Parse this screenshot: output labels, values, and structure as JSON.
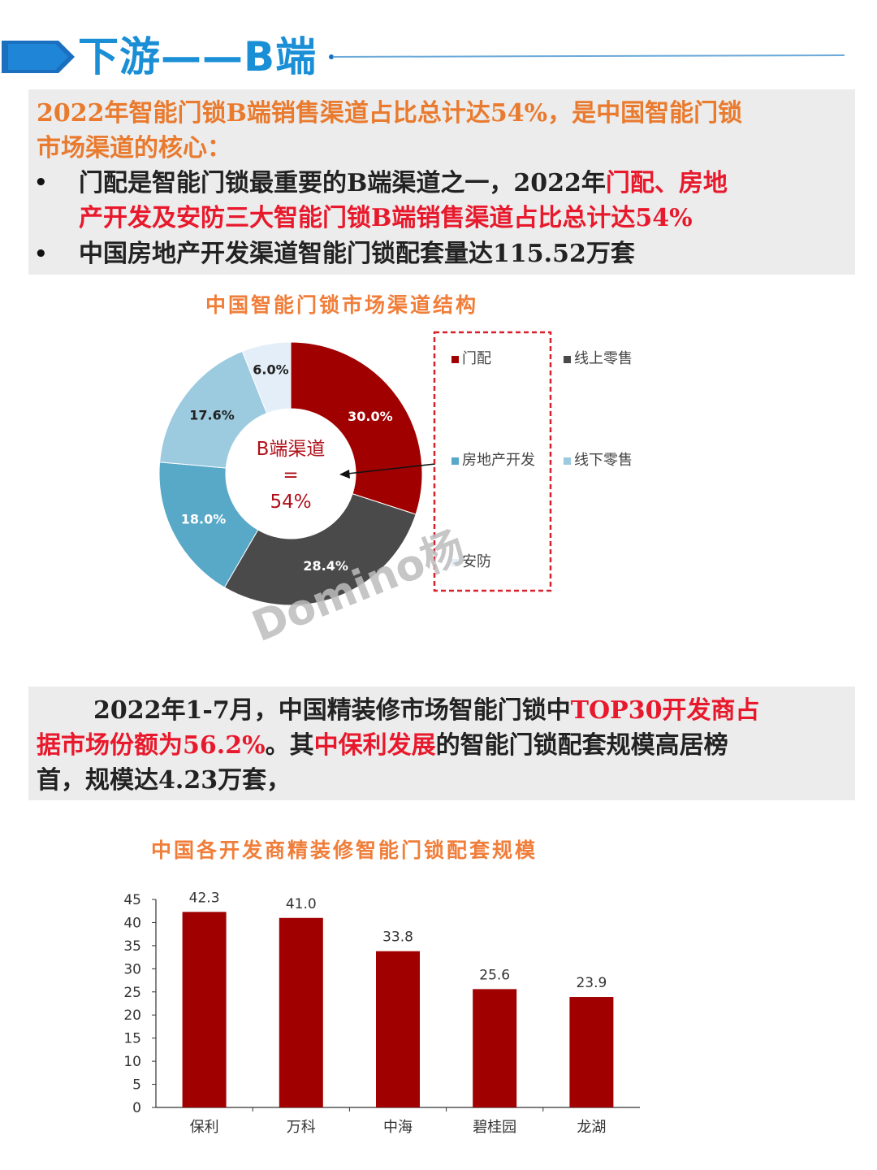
{
  "header": {
    "title": "下游——B端"
  },
  "box1": {
    "heading_line1": "2022年智能门锁B端销售渠道占比总计达54%，是中国智能门锁",
    "heading_line2": "市场渠道的核心：",
    "bullet1_line1_black": "门配是智能门锁最重要的B端渠道之一，2022年",
    "bullet1_line1_red": "门配、房地",
    "bullet1_line2_red": "产开发及安防三大智能门锁B端销售渠道占比总计达54%",
    "bullet2": "中国房地产开发渠道智能门锁配套量达115.52万套",
    "bullet_char": "•"
  },
  "donut": {
    "center_line1": "B端渠道",
    "center_line2": "=",
    "center_line3": "54%",
    "watermark": "Domino杨"
  },
  "box2": {
    "line1_black": "2022年1-7月，中国精装修市场智能门锁中",
    "line1_red": "TOP30开发商占",
    "line2_red_a": "据市场份额为56.2%",
    "line2_black_a": "。其",
    "line2_red_b": "中保利发展",
    "line2_black_b": "的智能门锁配套规模高居榜",
    "line3": "首，规模达4.23万套，"
  },
  "colors": {
    "accent_blue": "#1a8fd6",
    "orange": "#f07e3a",
    "red": "#e8192c",
    "dark_red": "#a00000"
  },
  "chart_data": [
    {
      "type": "pie",
      "variant": "donut",
      "title": "中国智能门锁市场渠道结构",
      "series": [
        {
          "name": "门配",
          "value": 30.0,
          "label": "30.0%",
          "color": "#a00000"
        },
        {
          "name": "线上零售",
          "value": 28.4,
          "label": "28.4%",
          "color": "#4a4a4a"
        },
        {
          "name": "房地产开发",
          "value": 18.0,
          "label": "18.0%",
          "color": "#58a8c8"
        },
        {
          "name": "线下零售",
          "value": 17.6,
          "label": "17.6%",
          "color": "#9ccbe0"
        },
        {
          "name": "安防",
          "value": 6.0,
          "label": "6.0%",
          "color": "#e3eef8"
        }
      ],
      "legend": {
        "placement": "right",
        "order": [
          "门配",
          "线上零售",
          "房地产开发",
          "线下零售",
          "安防"
        ]
      }
    },
    {
      "type": "bar",
      "title": "中国各开发商精装修智能门锁配套规模",
      "categories": [
        "保利",
        "万科",
        "中海",
        "碧桂园",
        "龙湖"
      ],
      "values": [
        42.3,
        41.0,
        33.8,
        25.6,
        23.9
      ],
      "value_labels": [
        "42.3",
        "41.0",
        "33.8",
        "25.6",
        "23.9"
      ],
      "ylim": [
        0,
        45
      ],
      "yticks": [
        0,
        5,
        10,
        15,
        20,
        25,
        30,
        35,
        40,
        45
      ],
      "color": "#a00000",
      "grid": false
    }
  ]
}
